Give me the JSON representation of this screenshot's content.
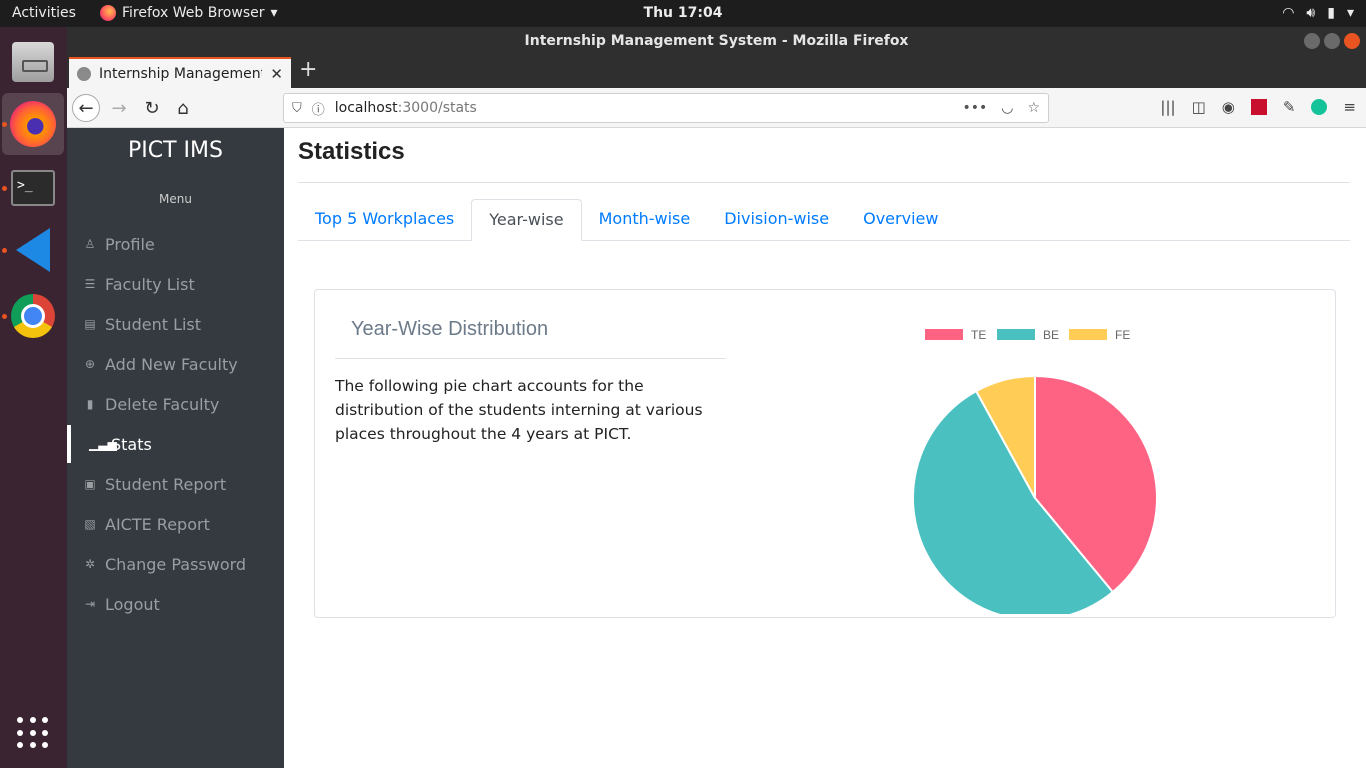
{
  "system": {
    "activities": "Activities",
    "app_menu": "Firefox Web Browser",
    "clock": "Thu 17:04"
  },
  "window": {
    "title": "Internship Management System - Mozilla Firefox"
  },
  "browser": {
    "tab_title": "Internship Management",
    "url_host": "localhost",
    "url_path": ":3000/stats"
  },
  "sidebar": {
    "brand": "PICT IMS",
    "menu_label": "Menu",
    "items": [
      {
        "label": "Profile",
        "icon": "user-icon"
      },
      {
        "label": "Faculty List",
        "icon": "list-icon"
      },
      {
        "label": "Student List",
        "icon": "id-card-icon"
      },
      {
        "label": "Add New Faculty",
        "icon": "plus-circle-icon"
      },
      {
        "label": "Delete Faculty",
        "icon": "trash-icon"
      },
      {
        "label": "Stats",
        "icon": "bar-chart-icon",
        "active": true
      },
      {
        "label": "Student Report",
        "icon": "clipboard-icon"
      },
      {
        "label": "AICTE Report",
        "icon": "file-icon"
      },
      {
        "label": "Change Password",
        "icon": "gear-icon"
      },
      {
        "label": "Logout",
        "icon": "logout-icon"
      }
    ]
  },
  "main": {
    "title": "Statistics",
    "tabs": [
      {
        "label": "Top 5 Workplaces"
      },
      {
        "label": "Year-wise",
        "active": true
      },
      {
        "label": "Month-wise"
      },
      {
        "label": "Division-wise"
      },
      {
        "label": "Overview"
      }
    ],
    "card": {
      "title": "Year-Wise Distribution",
      "text": "The following pie chart accounts for the distribution of the students interning at various places throughout the 4 years at PICT."
    }
  },
  "chart_data": {
    "type": "pie",
    "categories": [
      "TE",
      "BE",
      "FE"
    ],
    "values": [
      39,
      53,
      8
    ],
    "colors": [
      "#ff6384",
      "#4bc0c0",
      "#ffcd56"
    ],
    "legend_position": "top"
  }
}
